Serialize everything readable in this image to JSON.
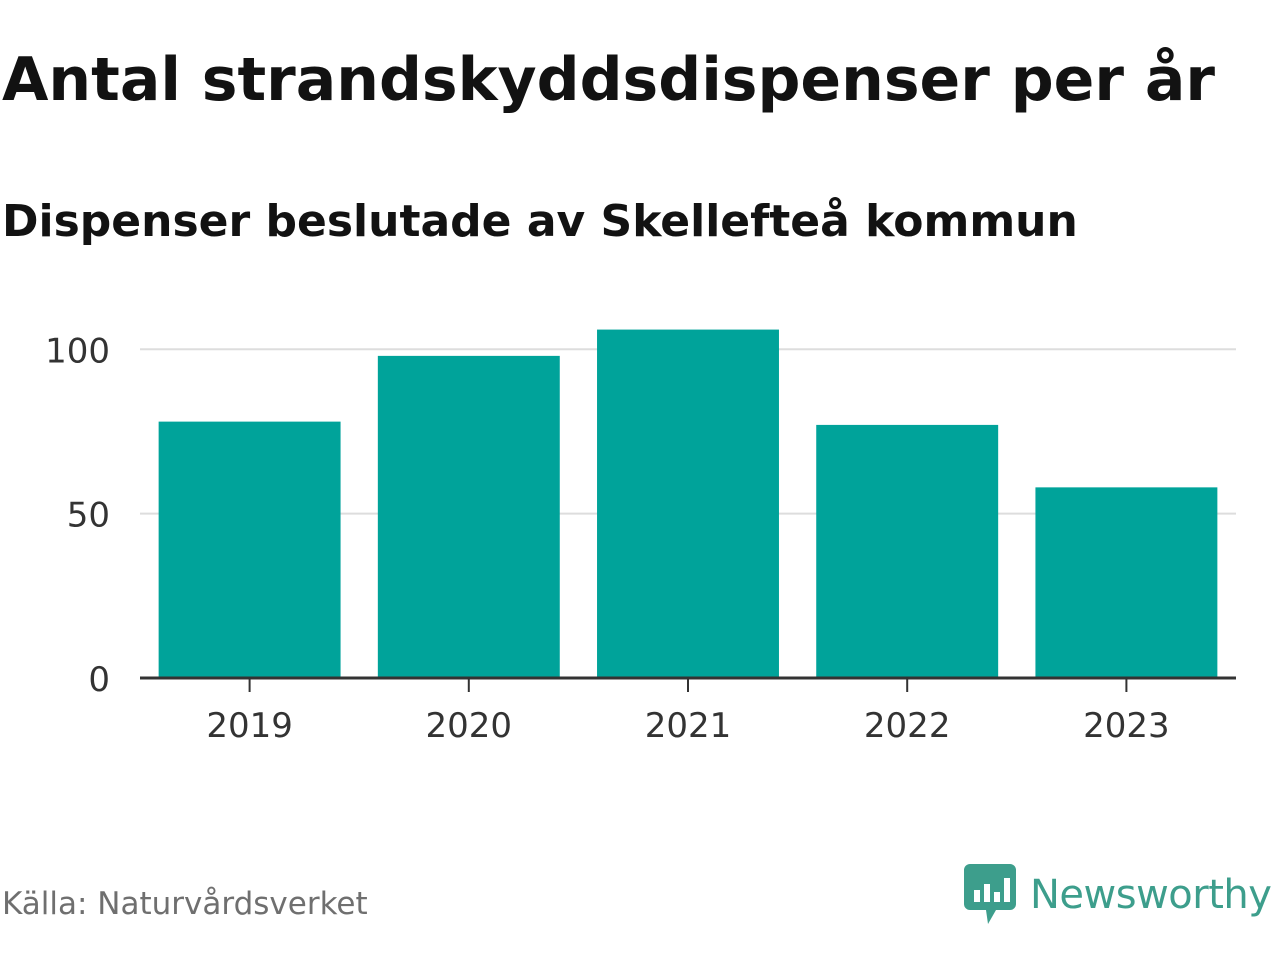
{
  "chart_data": {
    "type": "bar",
    "title": "Antal strandskyddsdispenser per år",
    "subtitle": "Dispenser beslutade av Skellefteå kommun",
    "categories": [
      "2019",
      "2020",
      "2021",
      "2022",
      "2023"
    ],
    "values": [
      78,
      98,
      106,
      77,
      58
    ],
    "ylim": [
      0,
      115
    ],
    "yticks": [
      0,
      50,
      100
    ],
    "ytick_labels": [
      "0",
      "50",
      "100"
    ],
    "xlabel": "",
    "ylabel": "",
    "grid": true,
    "bar_color": "#00a39a",
    "grid_color": "#dddddd",
    "axis_color": "#333333"
  },
  "footer": {
    "source": "Källa: Naturvårdsverket",
    "brand": "Newsworthy",
    "brand_color": "#3d9e8c"
  }
}
